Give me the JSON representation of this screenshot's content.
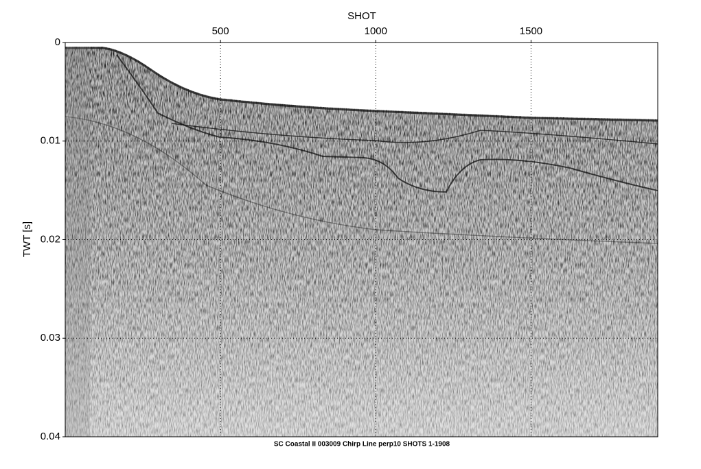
{
  "chart_data": {
    "type": "image",
    "title": "SC Coastal II 003009 Chirp Line perp10 SHOTS 1-1908",
    "x_label": "SHOT",
    "y_label": "TWT [s]",
    "xlim": [
      0,
      1908
    ],
    "xticks": [
      500,
      1000,
      1500
    ],
    "ylim": [
      0,
      0.04
    ],
    "yticks": [
      0,
      0.01,
      0.02,
      0.03,
      0.04
    ],
    "grid": true
  }
}
